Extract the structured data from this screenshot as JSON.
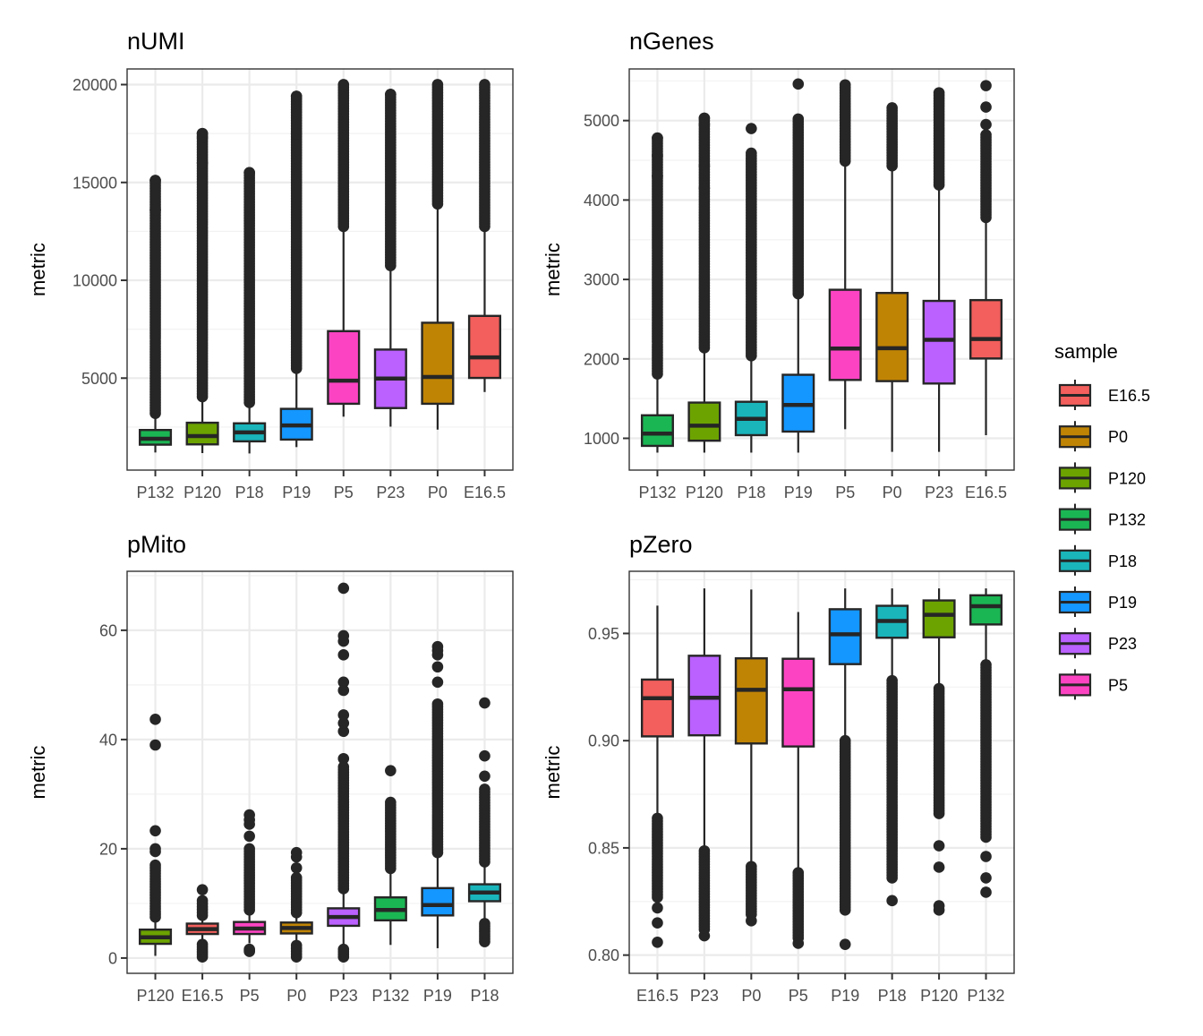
{
  "chart_data": [
    {
      "type": "boxplot",
      "title": "nUMI",
      "xlabel": "",
      "ylabel": "metric",
      "ylim": [
        300,
        20800
      ],
      "yticks": [
        5000,
        10000,
        15000,
        20000
      ],
      "yticklabels": [
        "5000",
        "10000",
        "15000",
        "20000"
      ],
      "grid": true,
      "categories": [
        "P132",
        "P120",
        "P18",
        "P19",
        "P5",
        "P23",
        "P0",
        "E16.5"
      ],
      "boxes": [
        {
          "sample": "P132",
          "lower_whisker": 1200,
          "q1": 1600,
          "median": 1900,
          "q3": 2350,
          "upper_whisker": 3170,
          "outliers_range": [
            3200,
            15100
          ],
          "notable_outliers": [
            13600,
            15100
          ]
        },
        {
          "sample": "P120",
          "lower_whisker": 1170,
          "q1": 1615,
          "median": 2040,
          "q3": 2720,
          "upper_whisker": 4000,
          "outliers_range": [
            4050,
            17500
          ],
          "notable_outliers": [
            16000,
            17300,
            17500
          ]
        },
        {
          "sample": "P18",
          "lower_whisker": 1150,
          "q1": 1770,
          "median": 2230,
          "q3": 2690,
          "upper_whisker": 3700,
          "outliers_range": [
            3750,
            15500
          ],
          "notable_outliers": [
            15500
          ]
        },
        {
          "sample": "P19",
          "lower_whisker": 1475,
          "q1": 1860,
          "median": 2580,
          "q3": 3430,
          "upper_whisker": 5450,
          "outliers_range": [
            5500,
            19400
          ],
          "notable_outliers": [
            17500,
            19400
          ]
        },
        {
          "sample": "P5",
          "lower_whisker": 3030,
          "q1": 3690,
          "median": 4870,
          "q3": 7400,
          "upper_whisker": 12700,
          "outliers_range": [
            12750,
            20000
          ],
          "notable_outliers": []
        },
        {
          "sample": "P23",
          "lower_whisker": 2520,
          "q1": 3470,
          "median": 4980,
          "q3": 6460,
          "upper_whisker": 10700,
          "outliers_range": [
            10750,
            19500
          ],
          "notable_outliers": [
            19500
          ]
        },
        {
          "sample": "P0",
          "lower_whisker": 2370,
          "q1": 3690,
          "median": 5060,
          "q3": 7830,
          "upper_whisker": 13850,
          "outliers_range": [
            13900,
            20000
          ],
          "notable_outliers": []
        },
        {
          "sample": "E16.5",
          "lower_whisker": 4290,
          "q1": 5010,
          "median": 6060,
          "q3": 8180,
          "upper_whisker": 12700,
          "outliers_range": [
            12750,
            20000
          ],
          "notable_outliers": []
        }
      ]
    },
    {
      "type": "boxplot",
      "title": "nGenes",
      "xlabel": "",
      "ylabel": "metric",
      "ylim": [
        600,
        5650
      ],
      "yticks": [
        1000,
        2000,
        3000,
        4000,
        5000
      ],
      "yticklabels": [
        "1000",
        "2000",
        "3000",
        "4000",
        "5000"
      ],
      "grid": true,
      "categories": [
        "P132",
        "P120",
        "P18",
        "P19",
        "P5",
        "P0",
        "P23",
        "E16.5"
      ],
      "boxes": [
        {
          "sample": "P132",
          "lower_whisker": 820,
          "q1": 905,
          "median": 1060,
          "q3": 1290,
          "upper_whisker": 1805,
          "outliers_range": [
            1810,
            4780
          ],
          "notable_outliers": [
            4300,
            4560,
            4780
          ]
        },
        {
          "sample": "P120",
          "lower_whisker": 820,
          "q1": 970,
          "median": 1160,
          "q3": 1450,
          "upper_whisker": 2130,
          "outliers_range": [
            2140,
            5030
          ],
          "notable_outliers": [
            4150,
            4430,
            4950,
            5030
          ]
        },
        {
          "sample": "P18",
          "lower_whisker": 820,
          "q1": 1040,
          "median": 1245,
          "q3": 1460,
          "upper_whisker": 2035,
          "outliers_range": [
            2040,
            4590
          ],
          "notable_outliers": [
            4900
          ]
        },
        {
          "sample": "P19",
          "lower_whisker": 820,
          "q1": 1085,
          "median": 1420,
          "q3": 1800,
          "upper_whisker": 2810,
          "outliers_range": [
            2820,
            5020
          ],
          "notable_outliers": [
            5460
          ]
        },
        {
          "sample": "P5",
          "lower_whisker": 1115,
          "q1": 1735,
          "median": 2130,
          "q3": 2870,
          "upper_whisker": 4480,
          "outliers_range": [
            4490,
            5450
          ],
          "notable_outliers": []
        },
        {
          "sample": "P0",
          "lower_whisker": 830,
          "q1": 1720,
          "median": 2135,
          "q3": 2830,
          "upper_whisker": 4420,
          "outliers_range": [
            4430,
            5160
          ],
          "notable_outliers": []
        },
        {
          "sample": "P23",
          "lower_whisker": 830,
          "q1": 1690,
          "median": 2240,
          "q3": 2730,
          "upper_whisker": 4180,
          "outliers_range": [
            4190,
            5350
          ],
          "notable_outliers": []
        },
        {
          "sample": "E16.5",
          "lower_whisker": 1040,
          "q1": 2005,
          "median": 2250,
          "q3": 2740,
          "upper_whisker": 3770,
          "outliers_range": [
            3780,
            4820
          ],
          "notable_outliers": [
            4950,
            5170,
            5440
          ]
        }
      ]
    },
    {
      "type": "boxplot",
      "title": "pMito",
      "xlabel": "",
      "ylabel": "metric",
      "ylim": [
        -2.8,
        70.8
      ],
      "yticks": [
        0,
        20,
        40,
        60
      ],
      "yticklabels": [
        "0",
        "20",
        "40",
        "60"
      ],
      "grid": true,
      "categories": [
        "P120",
        "E16.5",
        "P5",
        "P0",
        "P23",
        "P132",
        "P19",
        "P18"
      ],
      "boxes": [
        {
          "sample": "P120",
          "lower_whisker": 0.4,
          "q1": 2.6,
          "median": 3.8,
          "q3": 5.2,
          "upper_whisker": 7.3,
          "outliers_range": [
            7.5,
            17.0
          ],
          "notable_outliers": [
            19.5,
            20.0,
            23.3,
            39.0,
            43.7
          ]
        },
        {
          "sample": "E16.5",
          "lower_whisker": 3.3,
          "q1": 4.4,
          "median": 5.3,
          "q3": 6.3,
          "upper_whisker": 7.6,
          "outliers_range": [
            7.8,
            10.5
          ],
          "notable_outliers": [
            12.5
          ],
          "low_outliers_range": [
            0.2,
            2.5
          ]
        },
        {
          "sample": "P5",
          "lower_whisker": 2.7,
          "q1": 4.4,
          "median": 5.4,
          "q3": 6.6,
          "upper_whisker": 8.6,
          "outliers_range": [
            8.8,
            20.0
          ],
          "notable_outliers": [
            22.3,
            24.5,
            25.3,
            26.2
          ],
          "low_outliers_range": [
            1.2,
            1.6
          ]
        },
        {
          "sample": "P0",
          "lower_whisker": 3.1,
          "q1": 4.5,
          "median": 5.5,
          "q3": 6.5,
          "upper_whisker": 8.1,
          "outliers_range": [
            8.3,
            14.7
          ],
          "notable_outliers": [
            16.5,
            18.5,
            19.3
          ],
          "low_outliers_range": [
            0.2,
            2.3
          ]
        },
        {
          "sample": "P23",
          "lower_whisker": 2.2,
          "q1": 5.9,
          "median": 7.5,
          "q3": 9.1,
          "upper_whisker": 12.5,
          "outliers_range": [
            12.7,
            35.0
          ],
          "notable_outliers": [
            36.5,
            41.5,
            43.0,
            44.5,
            49.0,
            50.5,
            55.5,
            58.0,
            59.0,
            67.7
          ],
          "low_outliers_range": [
            0.2,
            1.6
          ]
        },
        {
          "sample": "P132",
          "lower_whisker": 2.4,
          "q1": 6.9,
          "median": 8.8,
          "q3": 11.1,
          "upper_whisker": 16.2,
          "outliers_range": [
            16.4,
            28.5
          ],
          "notable_outliers": [
            34.3
          ]
        },
        {
          "sample": "P19",
          "lower_whisker": 1.8,
          "q1": 7.8,
          "median": 9.7,
          "q3": 12.8,
          "upper_whisker": 19.1,
          "outliers_range": [
            19.3,
            46.5
          ],
          "notable_outliers": [
            50.5,
            53.3,
            55.5,
            56.3,
            57.0
          ]
        },
        {
          "sample": "P18",
          "lower_whisker": 7.0,
          "q1": 10.4,
          "median": 12.0,
          "q3": 13.5,
          "upper_whisker": 17.4,
          "outliers_range": [
            17.6,
            30.9
          ],
          "notable_outliers": [
            33.3,
            37.0,
            46.7
          ],
          "low_outliers_range": [
            3.0,
            6.3
          ]
        }
      ]
    },
    {
      "type": "boxplot",
      "title": "pZero",
      "xlabel": "",
      "ylabel": "metric",
      "ylim": [
        0.7915,
        0.979
      ],
      "yticks": [
        0.8,
        0.85,
        0.9,
        0.95
      ],
      "yticklabels": [
        "0.80",
        "0.85",
        "0.90",
        "0.95"
      ],
      "grid": true,
      "categories": [
        "E16.5",
        "P23",
        "P0",
        "P5",
        "P19",
        "P18",
        "P120",
        "P132"
      ],
      "boxes": [
        {
          "sample": "E16.5",
          "lower_whisker": 0.866,
          "q1": 0.902,
          "median": 0.9198,
          "q3": 0.9285,
          "upper_whisker": 0.963,
          "low_outliers_range": [
            0.827,
            0.8638
          ],
          "notable_outliers": [
            0.806,
            0.815,
            0.822
          ]
        },
        {
          "sample": "P23",
          "lower_whisker": 0.85,
          "q1": 0.9025,
          "median": 0.92,
          "q3": 0.9396,
          "upper_whisker": 0.971,
          "low_outliers_range": [
            0.812,
            0.8486
          ],
          "notable_outliers": [
            0.809
          ]
        },
        {
          "sample": "P0",
          "lower_whisker": 0.842,
          "q1": 0.8987,
          "median": 0.9237,
          "q3": 0.9384,
          "upper_whisker": 0.9705,
          "low_outliers_range": [
            0.819,
            0.8413
          ],
          "notable_outliers": [
            0.816
          ]
        },
        {
          "sample": "P5",
          "lower_whisker": 0.839,
          "q1": 0.8973,
          "median": 0.924,
          "q3": 0.9382,
          "upper_whisker": 0.96,
          "low_outliers_range": [
            0.808,
            0.8384
          ],
          "notable_outliers": [
            0.8055
          ]
        },
        {
          "sample": "P19",
          "lower_whisker": 0.901,
          "q1": 0.9357,
          "median": 0.9496,
          "q3": 0.9613,
          "upper_whisker": 0.971,
          "low_outliers_range": [
            0.821,
            0.9
          ],
          "notable_outliers": [
            0.805
          ]
        },
        {
          "sample": "P18",
          "lower_whisker": 0.929,
          "q1": 0.948,
          "median": 0.9558,
          "q3": 0.9629,
          "upper_whisker": 0.971,
          "low_outliers_range": [
            0.836,
            0.928
          ],
          "notable_outliers": [
            0.8254
          ]
        },
        {
          "sample": "P120",
          "lower_whisker": 0.925,
          "q1": 0.9482,
          "median": 0.9587,
          "q3": 0.9654,
          "upper_whisker": 0.971,
          "low_outliers_range": [
            0.866,
            0.9243
          ],
          "notable_outliers": [
            0.821,
            0.823,
            0.841,
            0.851
          ]
        },
        {
          "sample": "P132",
          "lower_whisker": 0.936,
          "q1": 0.9542,
          "median": 0.9627,
          "q3": 0.9678,
          "upper_whisker": 0.971,
          "low_outliers_range": [
            0.855,
            0.9354
          ],
          "notable_outliers": [
            0.8293,
            0.836,
            0.846
          ]
        }
      ]
    }
  ],
  "legend": {
    "title": "sample",
    "position": "right",
    "items": [
      {
        "label": "E16.5",
        "color": "#F25F5C"
      },
      {
        "label": "P0",
        "color": "#C08405"
      },
      {
        "label": "P120",
        "color": "#6CA301"
      },
      {
        "label": "P132",
        "color": "#1BB654"
      },
      {
        "label": "P18",
        "color": "#19B5BB"
      },
      {
        "label": "P19",
        "color": "#1497FF"
      },
      {
        "label": "P23",
        "color": "#BA61FF"
      },
      {
        "label": "P5",
        "color": "#FC44C3"
      }
    ]
  },
  "colors": {
    "outline": "#262626",
    "grid_major": "#ebebeb",
    "grid_minor": "#f2f2f2",
    "panel_border": "#333333",
    "tick_text": "#4d4d4d"
  }
}
